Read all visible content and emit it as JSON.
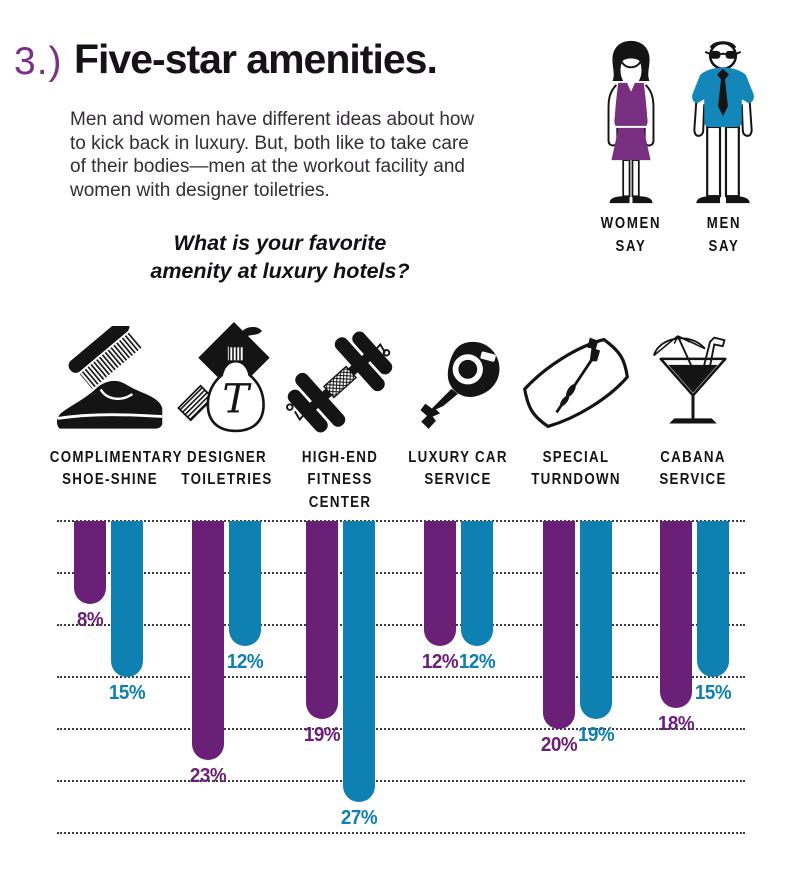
{
  "page": {
    "section_number": "3.)",
    "title": "Five-star amenities.",
    "description": "Men and women have different ideas about how to kick back in luxury. But, both like to take care of their bodies—men at the workout facility and women with designer toiletries.",
    "question": {
      "line1": "What is your favorite",
      "line2": "amenity at luxury hotels?"
    }
  },
  "legend": {
    "women": {
      "line1": "WOMEN",
      "line2": "SAY",
      "icon": "woman-figure-icon",
      "color": "#6a2077",
      "dress_color": "#792f80"
    },
    "men": {
      "line1": "MEN",
      "line2": "SAY",
      "icon": "man-figure-icon",
      "color": "#0e80b2",
      "shirt_color": "#1387ba"
    }
  },
  "chart_data": {
    "type": "bar",
    "orientation": "hanging-vertical",
    "title": "What is your favorite amenity at luxury hotels?",
    "unit": "%",
    "ylim": [
      0,
      30
    ],
    "gridlines_pct": [
      0,
      5,
      10,
      15,
      20,
      25,
      30
    ],
    "grid_style": "dotted-horizontal",
    "legend_position": "top-right",
    "categories": [
      {
        "icon": "shoe-shine-icon",
        "label": [
          "COMPLIMENTARY",
          "SHOE-SHINE"
        ]
      },
      {
        "icon": "toiletries-icon",
        "label": [
          "DESIGNER",
          "TOILETRIES"
        ],
        "monogram": "T"
      },
      {
        "icon": "dumbbell-icon",
        "label": [
          "HIGH-END",
          "FITNESS CENTER"
        ]
      },
      {
        "icon": "car-key-icon",
        "label": [
          "LUXURY CAR",
          "SERVICE"
        ]
      },
      {
        "icon": "pillow-icon",
        "label": [
          "SPECIAL",
          "TURNDOWN"
        ]
      },
      {
        "icon": "cocktail-icon",
        "label": [
          "CABANA",
          "SERVICE"
        ]
      }
    ],
    "series": [
      {
        "name": "Women say",
        "color": "#6a2077",
        "values": [
          8,
          23,
          19,
          12,
          20,
          18
        ]
      },
      {
        "name": "Men say",
        "color": "#0e80b2",
        "values": [
          15,
          12,
          27,
          12,
          19,
          15
        ]
      }
    ]
  }
}
